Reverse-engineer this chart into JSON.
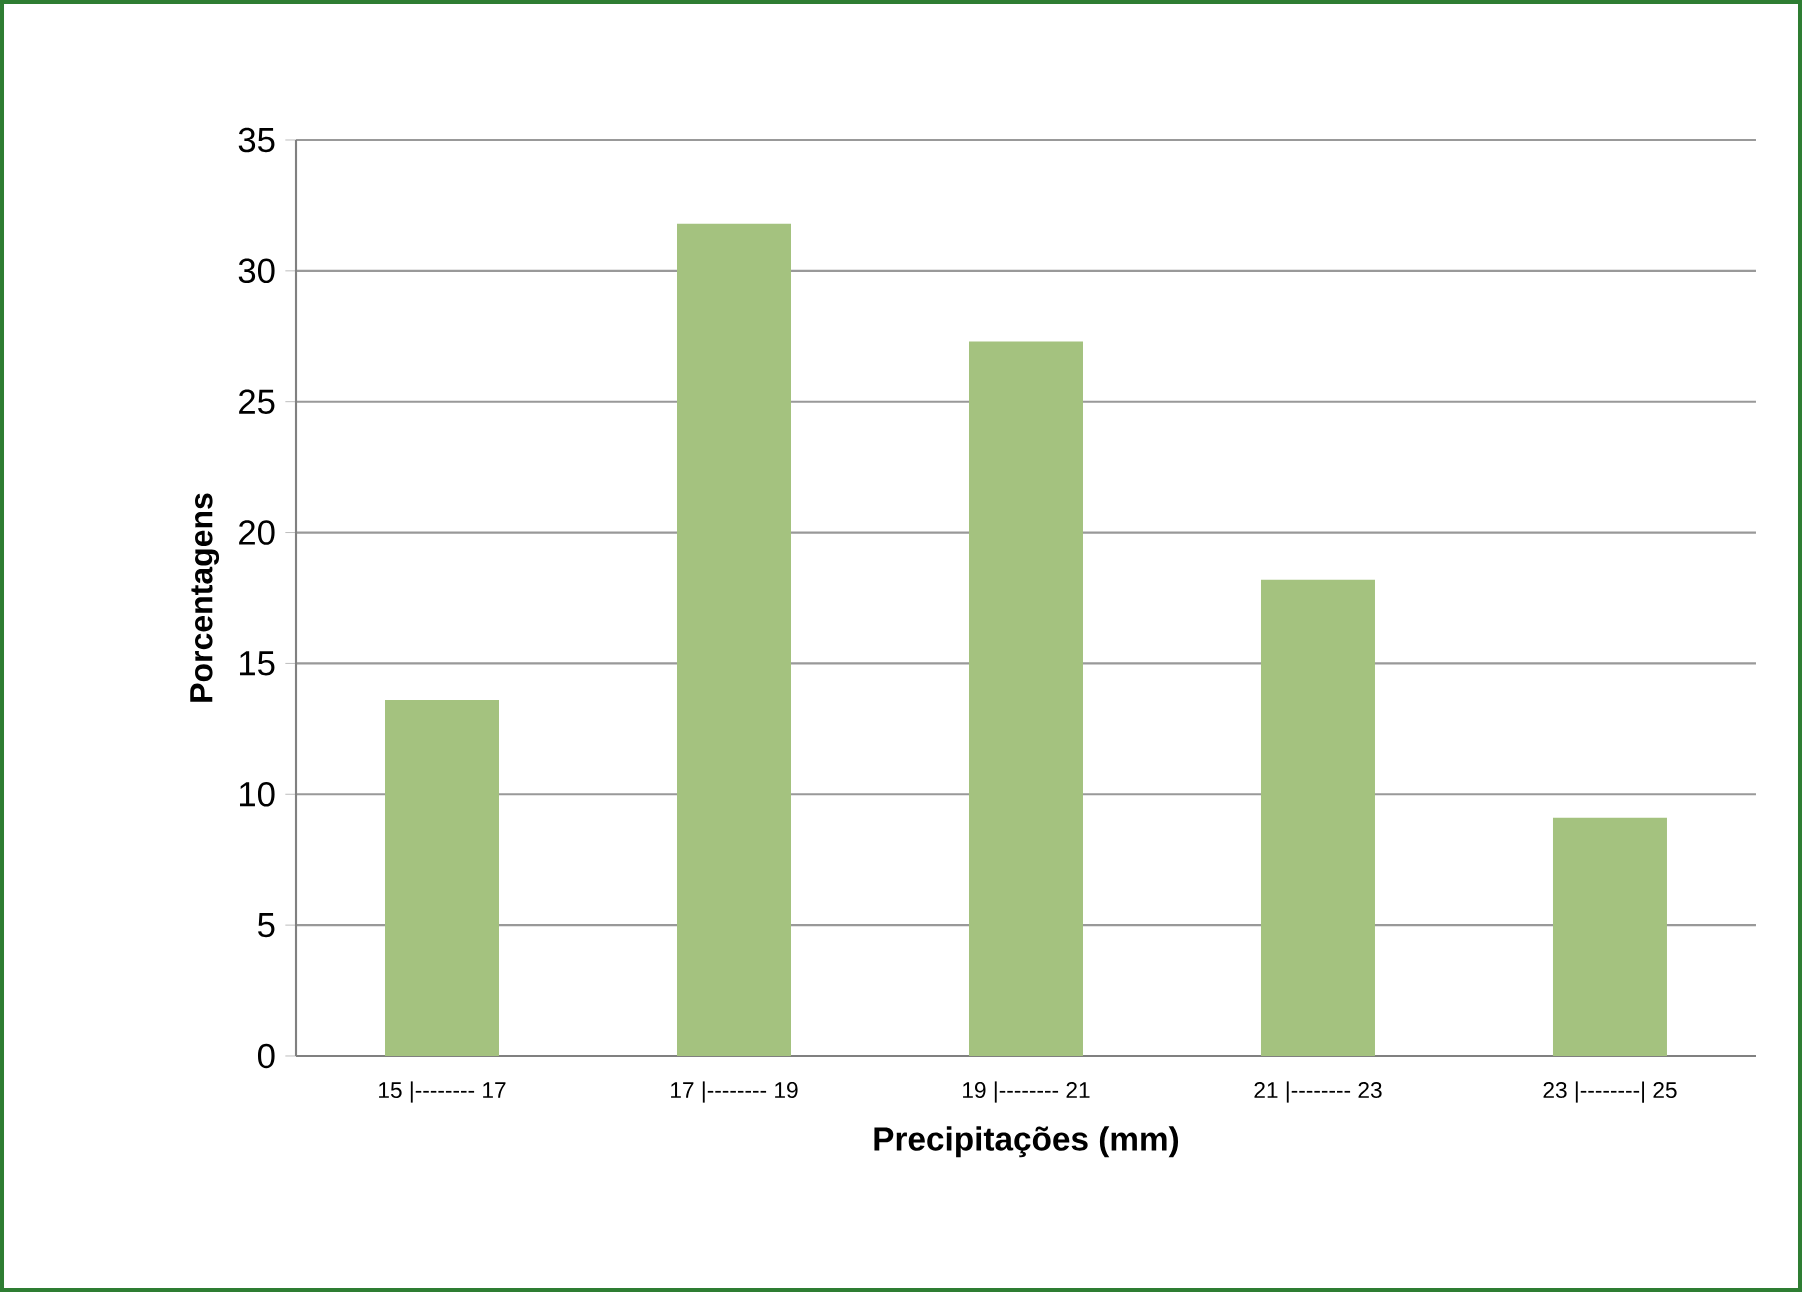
{
  "chart_data": {
    "type": "bar",
    "xlabel": "Precipitações (mm)",
    "ylabel": "Porcentagens",
    "categories": [
      "15 |-------- 17",
      "17 |-------- 19",
      "19 |-------- 21",
      "21 |-------- 23",
      "23 |--------| 25"
    ],
    "values": [
      13.6,
      31.8,
      27.3,
      18.2,
      9.1
    ],
    "color": "#a4c27f",
    "ylim": [
      0,
      35
    ],
    "yticks": [
      0,
      5,
      10,
      15,
      20,
      25,
      30,
      35
    ],
    "grid": "y"
  }
}
